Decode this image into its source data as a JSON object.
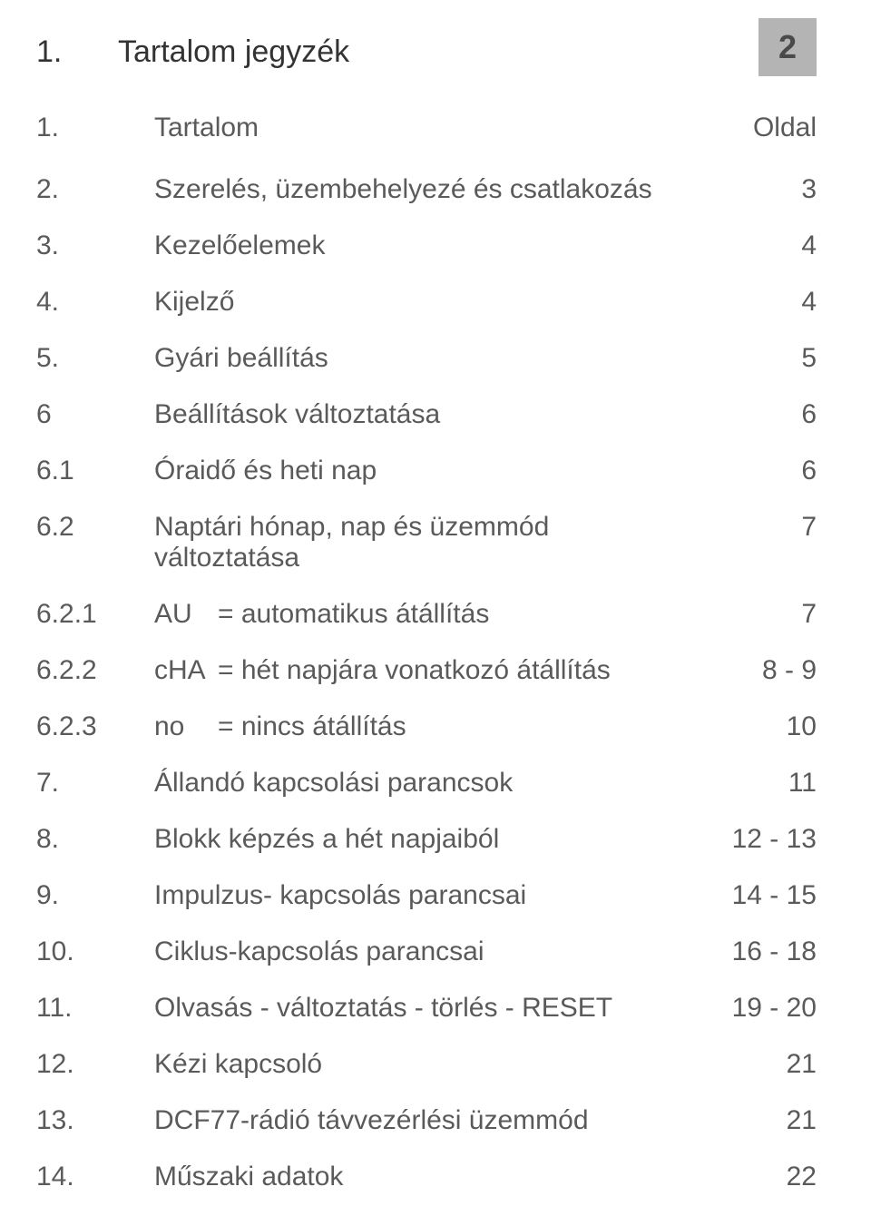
{
  "colors": {
    "background": "#ffffff",
    "text_primary": "#333333",
    "text_body": "#5a5a5a",
    "badge_bg": "#b4b4b4",
    "badge_text": "#4a4a4a"
  },
  "typography": {
    "header_fontsize_pt": 26,
    "body_fontsize_pt": 22,
    "font_weight": 300,
    "font_family": "Helvetica Neue Light"
  },
  "header": {
    "num": "1.",
    "title": "Tartalom jegyzék",
    "page_badge": "2"
  },
  "toc": {
    "column_header": {
      "num": "1.",
      "title": "Tartalom",
      "page": "Oldal"
    },
    "rows": [
      {
        "num": "2.",
        "title": "Szerelés, üzembehelyezé és csatlakozás",
        "page": "3"
      },
      {
        "num": "3.",
        "title": "Kezelőelemek",
        "page": "4"
      },
      {
        "num": "4.",
        "title": "Kijelző",
        "page": "4"
      },
      {
        "num": "5.",
        "title": "Gyári beállítás",
        "page": "5"
      },
      {
        "num": "6",
        "title": "Beállítások változtatása",
        "page": "6"
      },
      {
        "num": "6.1",
        "title": "Óraidő és heti nap",
        "page": "6"
      },
      {
        "num": "6.2",
        "title": "Naptári hónap, nap és üzemmód változtatása",
        "page": "7"
      },
      {
        "num": "6.2.1",
        "code": "AU",
        "title": "= automatikus átállítás",
        "page": "7"
      },
      {
        "num": "6.2.2",
        "code": "cHA",
        "title": "= hét napjára vonatkozó átállítás",
        "page": "8 - 9"
      },
      {
        "num": "6.2.3",
        "code": "no",
        "title": "= nincs átállítás",
        "page": "10"
      },
      {
        "num": "7.",
        "title": "Állandó kapcsolási parancsok",
        "page": "11"
      },
      {
        "num": "8.",
        "title": "Blokk  képzés a hét napjaiból",
        "page": "12 - 13"
      },
      {
        "num": "9.",
        "title": "Impulzus- kapcsolás parancsai",
        "page": "14 - 15"
      },
      {
        "num": "10.",
        "title": "Ciklus-kapcsolás parancsai",
        "page": "16 - 18"
      },
      {
        "num": "11.",
        "title": "Olvasás - változtatás - törlés - RESET",
        "page": "19 - 20"
      },
      {
        "num": "12.",
        "title": "Kézi kapcsoló",
        "page": "21"
      },
      {
        "num": "13.",
        "title": "DCF77-rádió távvezérlési üzemmód",
        "page": "21"
      },
      {
        "num": "14.",
        "title": "Műszaki adatok",
        "page": "22"
      }
    ]
  }
}
